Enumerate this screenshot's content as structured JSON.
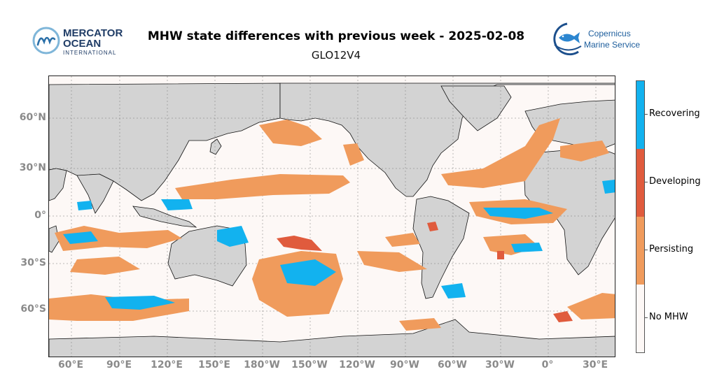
{
  "header": {
    "title": "MHW state differences with previous week - 2025-02-08",
    "subtitle": "GLO12V4"
  },
  "logos": {
    "left": {
      "line1": "MERCATOR",
      "line2": "OCEAN",
      "line3": "INTERNATIONAL",
      "mark_icon": "mercator-m-icon"
    },
    "right": {
      "line1": "Copernicus",
      "line2": "Marine Service",
      "mark_icon": "fish-globe-icon"
    }
  },
  "map": {
    "projection": "plate-carree",
    "center_longitude": 210,
    "land_color": "#d3d3d3",
    "ocean_color": "#fdf8f6",
    "lat_labels": [
      "60°N",
      "30°N",
      "0°",
      "30°S",
      "60°S"
    ],
    "lon_labels": [
      "60°E",
      "90°E",
      "120°E",
      "150°E",
      "180°W",
      "150°W",
      "120°W",
      "90°W",
      "60°W",
      "30°W",
      "0°",
      "30°E"
    ]
  },
  "legend": {
    "items": [
      {
        "label": "Recovering",
        "color": "#12b2ef"
      },
      {
        "label": "Developing",
        "color": "#e05b3d"
      },
      {
        "label": "Persisting",
        "color": "#f09b5c"
      },
      {
        "label": "No MHW",
        "color": "#fdf8f6"
      }
    ]
  }
}
